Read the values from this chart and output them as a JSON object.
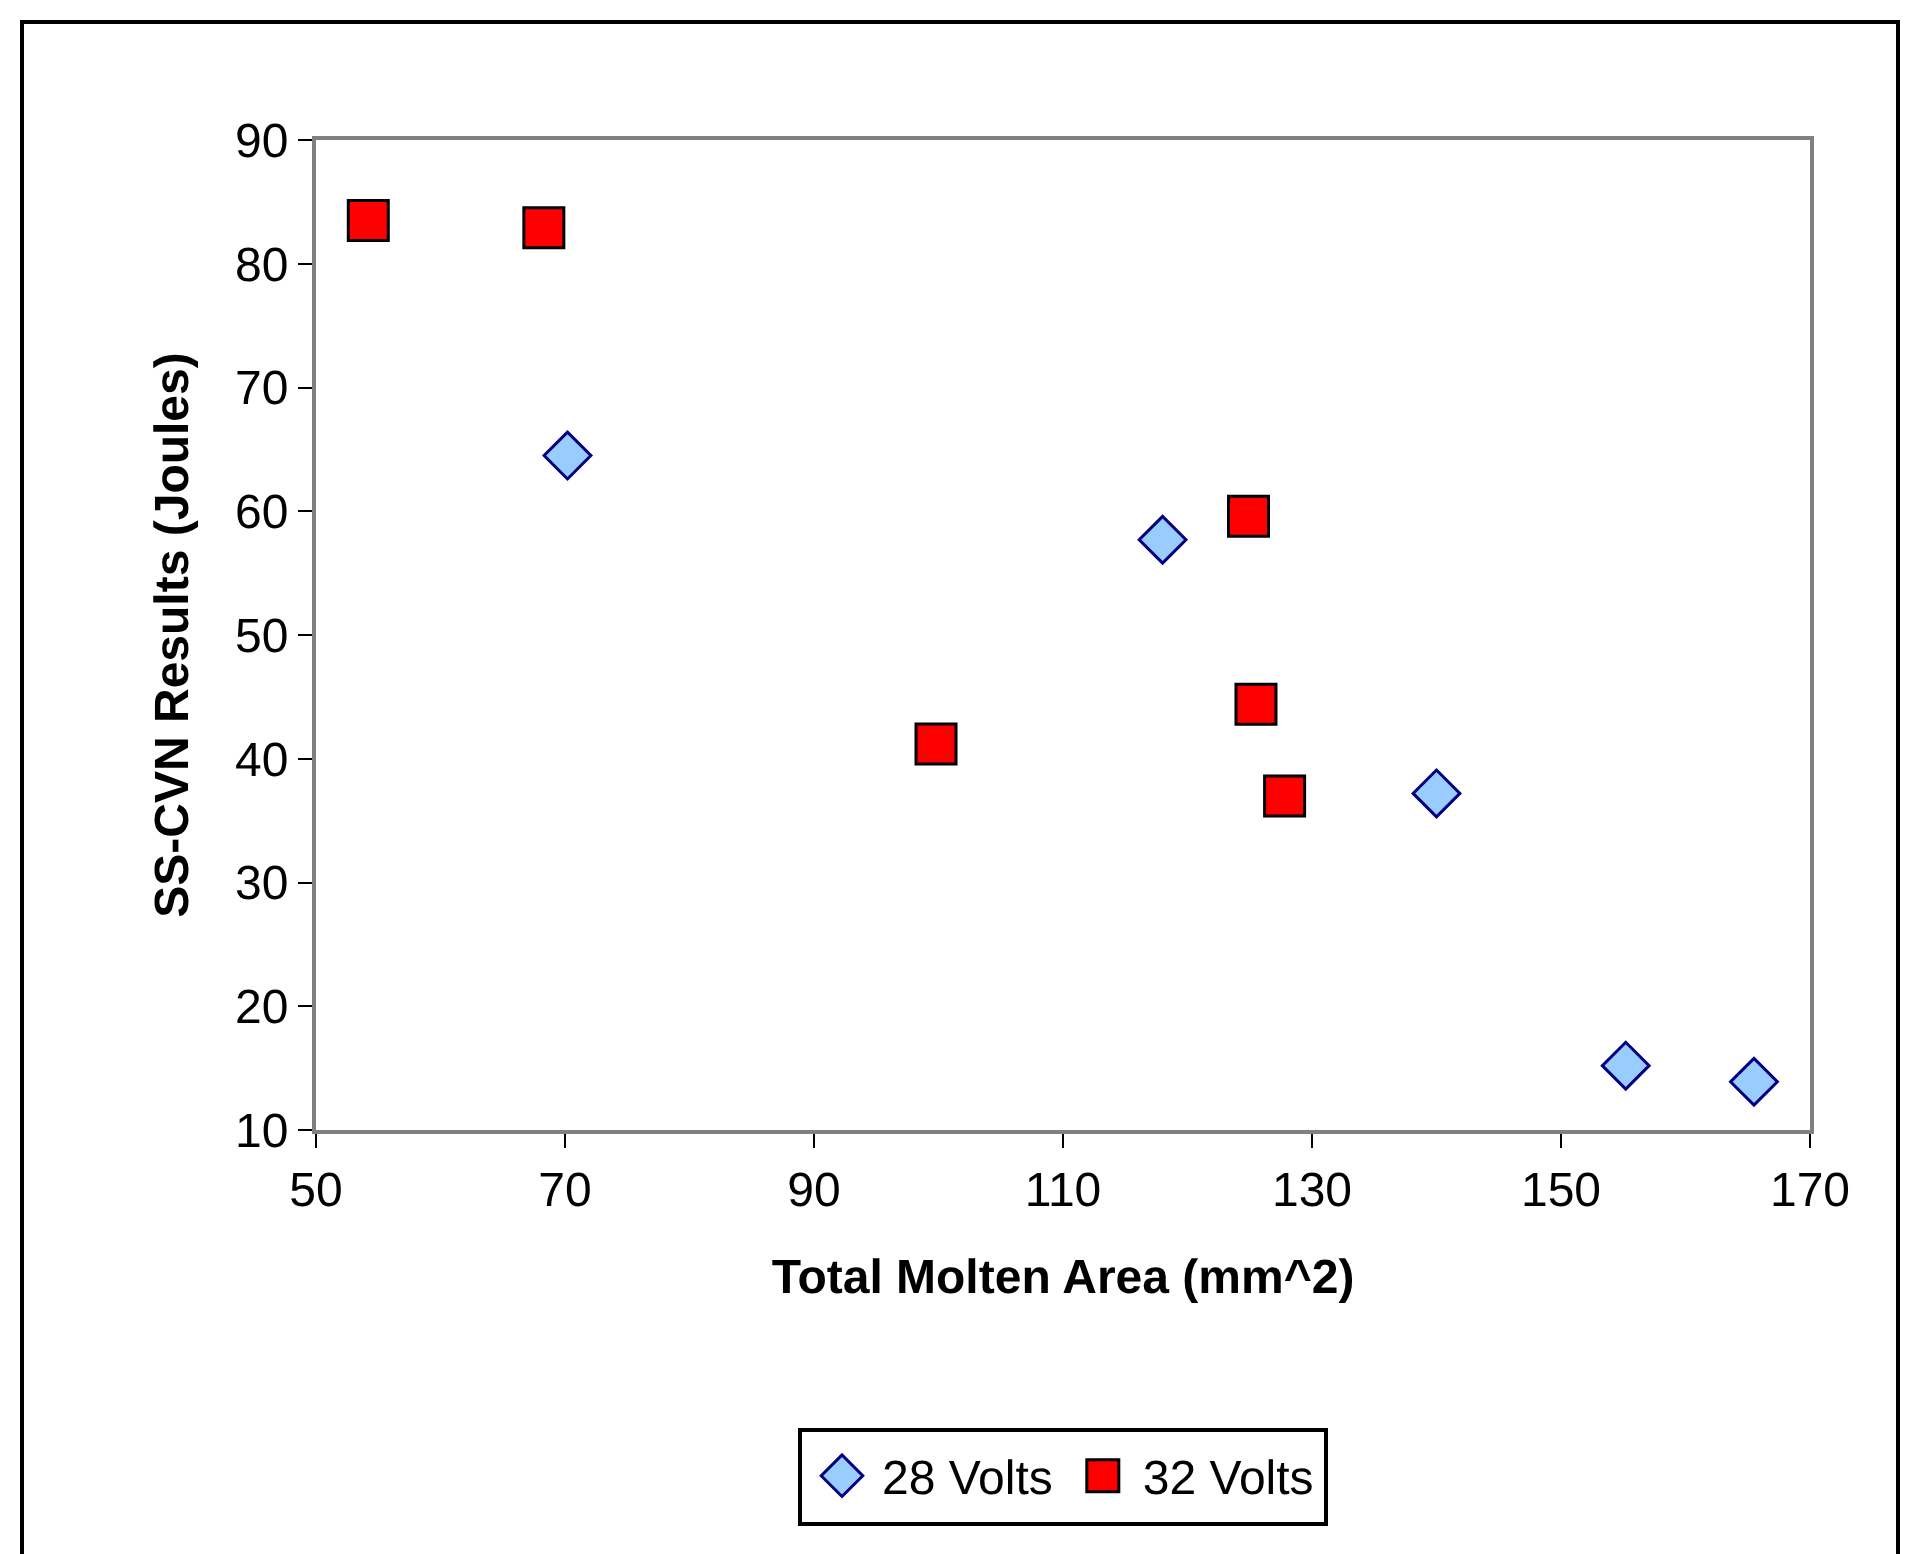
{
  "chart_data": {
    "type": "scatter",
    "xlabel": "Total Molten Area (mm^2)",
    "ylabel": "SS-CVN Results (Joules)",
    "xlim": [
      50,
      170
    ],
    "xticks": [
      50,
      70,
      90,
      110,
      130,
      150,
      170
    ],
    "ylim": [
      10,
      90
    ],
    "yticks": [
      10,
      20,
      30,
      40,
      50,
      60,
      70,
      80,
      90
    ],
    "grid": false,
    "legend": "bottom",
    "series": [
      {
        "name": "28 Volts",
        "color": "#99ccff",
        "marker": "diamond",
        "x": [
          70.2,
          118.0,
          140.0,
          155.2,
          165.5
        ],
        "values": [
          64.5,
          57.7,
          37.2,
          15.2,
          13.9
        ]
      },
      {
        "name": "32 Volts",
        "color": "#ff0000",
        "marker": "square",
        "x": [
          54.2,
          68.3,
          99.8,
          124.9,
          125.5,
          127.8
        ],
        "values": [
          83.5,
          82.9,
          41.2,
          59.6,
          44.4,
          37.0
        ]
      }
    ]
  }
}
